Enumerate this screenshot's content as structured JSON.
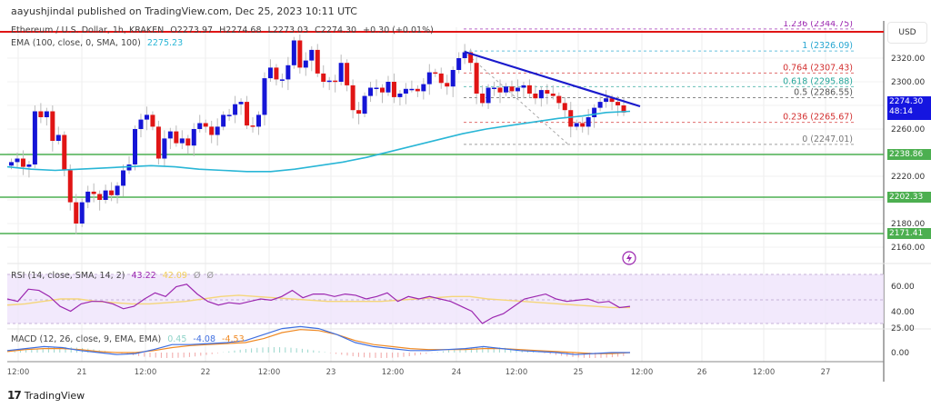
{
  "header": {
    "publisher_line": "aayushjindal published on TradingView.com, Dec 25, 2023 10:11 UTC"
  },
  "legend": {
    "symbol": "Ethereum / U.S. Dollar, 1h, KRAKEN",
    "open": "O2273.97",
    "high": "H2274.68",
    "low": "L2273.03",
    "close": "C2274.30",
    "change": "+0.30 (+0.01%)",
    "ema_label": "EMA (100, close, 0, SMA, 100)",
    "ema_value": "2275.23"
  },
  "price_axis": {
    "currency": "USD",
    "ticks": [
      "2320.00",
      "2300.00",
      "2280.00",
      "2260.00",
      "2220.00",
      "2180.00",
      "2160.00"
    ],
    "current_price": "2274.30",
    "countdown": "48:14",
    "support_levels": [
      "2238.86",
      "2202.33",
      "2171.41"
    ]
  },
  "fib_levels": [
    {
      "label": "1.236 (2344.75)",
      "color": "#9c27b0"
    },
    {
      "label": "1 (2326.09)",
      "color": "#26a6d1"
    },
    {
      "label": "0.764 (2307.43)",
      "color": "#d32f2f"
    },
    {
      "label": "0.618 (2295.88)",
      "color": "#26a69a"
    },
    {
      "label": "0.5 (2286.55)",
      "color": "#555555"
    },
    {
      "label": "0.236 (2265.67)",
      "color": "#d32f2f"
    },
    {
      "label": "0 (2247.01)",
      "color": "#777777"
    }
  ],
  "rsi": {
    "label": "RSI (14, close, SMA, 14, 2)",
    "value": "43.22",
    "sma_value": "42.09",
    "extra1": "Ø",
    "extra2": "Ø",
    "ticks": [
      "60.00",
      "40.00"
    ]
  },
  "macd": {
    "label": "MACD (12, 26, close, 9, EMA, EMA)",
    "hist": "0.45",
    "macd": "-4.08",
    "signal": "-4.53",
    "ticks": [
      "25.00",
      "0.00"
    ]
  },
  "time_axis": [
    "12:00",
    "21",
    "12:00",
    "22",
    "12:00",
    "23",
    "12:00",
    "24",
    "12:00",
    "25",
    "12:00",
    "26",
    "12:00",
    "27"
  ],
  "footer": {
    "brand": "TradingView",
    "logo": "17"
  },
  "colors": {
    "up": "#1515d6",
    "down": "#e01515",
    "ema": "#29b6d6",
    "resistance": "#e01515",
    "support": "#4caf50",
    "trendline": "#1a1acc",
    "rsi_line": "#9c27b0",
    "rsi_sma": "#f5d67a",
    "macd_line": "#3f6fe0",
    "signal_line": "#f08a24"
  },
  "chart_data": {
    "type": "candlestick",
    "title": "Ethereum / U.S. Dollar, 1h, KRAKEN",
    "xlabel": "",
    "ylabel": "USD",
    "ylim": [
      2150,
      2350
    ],
    "x_ticks": [
      "12:00",
      "21",
      "12:00",
      "22",
      "12:00",
      "23",
      "12:00",
      "24",
      "12:00",
      "25",
      "12:00",
      "26",
      "12:00",
      "27"
    ],
    "ohlc_last": {
      "open": 2273.97,
      "high": 2274.68,
      "low": 2273.03,
      "close": 2274.3,
      "change": 0.3,
      "change_pct": 0.01
    },
    "candles_approx_close": [
      2232,
      2235,
      2228,
      2230,
      2275,
      2270,
      2275,
      2250,
      2255,
      2225,
      2198,
      2180,
      2198,
      2207,
      2205,
      2200,
      2208,
      2204,
      2212,
      2225,
      2230,
      2260,
      2268,
      2272,
      2262,
      2235,
      2252,
      2258,
      2248,
      2252,
      2246,
      2260,
      2265,
      2262,
      2255,
      2262,
      2272,
      2272,
      2281,
      2283,
      2263,
      2262,
      2272,
      2303,
      2312,
      2302,
      2302,
      2314,
      2335,
      2312,
      2318,
      2327,
      2307,
      2300,
      2301,
      2300,
      2316,
      2297,
      2276,
      2273,
      2288,
      2295,
      2295,
      2291,
      2300,
      2287,
      2290,
      2294,
      2294,
      2292,
      2298,
      2308,
      2307,
      2299,
      2296,
      2310,
      2320,
      2325,
      2316,
      2290,
      2282,
      2295,
      2295,
      2291,
      2296,
      2292,
      2295,
      2297,
      2290,
      2286,
      2293,
      2290,
      2288,
      2282,
      2276,
      2262,
      2265,
      2262,
      2270,
      2278,
      2283,
      2286,
      2283,
      2280,
      2274
    ],
    "ema100_approx": [
      2228,
      2226,
      2225,
      2226,
      2227,
      2228,
      2229,
      2228,
      2226,
      2225,
      2224,
      2224,
      2226,
      2229,
      2232,
      2236,
      2241,
      2246,
      2251,
      2256,
      2260,
      2263,
      2266,
      2269,
      2271,
      2274,
      2275
    ],
    "resistance_line": 2342,
    "support_lines": [
      2238.86,
      2202.33,
      2171.41
    ],
    "trendline": {
      "from": [
        24.0,
        2326
      ],
      "to": [
        25.6,
        2282
      ]
    },
    "fibonacci": [
      {
        "ratio": 1.236,
        "price": 2344.75
      },
      {
        "ratio": 1,
        "price": 2326.09
      },
      {
        "ratio": 0.764,
        "price": 2307.43
      },
      {
        "ratio": 0.618,
        "price": 2295.88
      },
      {
        "ratio": 0.5,
        "price": 2286.55
      },
      {
        "ratio": 0.236,
        "price": 2265.67
      },
      {
        "ratio": 0,
        "price": 2247.01
      }
    ],
    "rsi": {
      "value": 43.22,
      "sma": 42.09,
      "range": [
        30,
        70
      ],
      "ticks": [
        60,
        40
      ]
    },
    "macd": {
      "histogram": 0.45,
      "macd": -4.08,
      "signal": -4.53,
      "ticks": [
        25,
        0
      ]
    }
  }
}
